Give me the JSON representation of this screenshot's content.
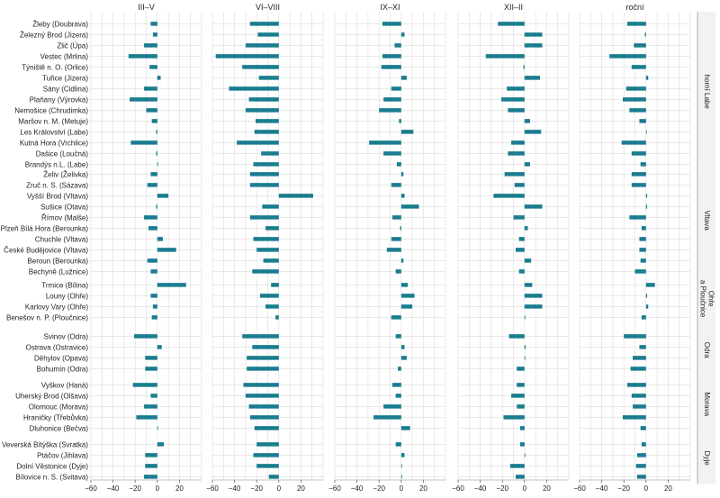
{
  "chart_data": {
    "type": "bar",
    "orientation": "horizontal",
    "panels": [
      "III–V",
      "VI–VIII",
      "IX–XI",
      "XII–II",
      "roční"
    ],
    "xlim": [
      -60,
      40
    ],
    "xticks": [
      -60,
      -40,
      -20,
      0,
      20
    ],
    "grid": true,
    "bar_color": "#1a7d8f",
    "groups": [
      {
        "name": "horní Labe",
        "name_lines": [
          "horní Labe"
        ],
        "stations": [
          {
            "label": "Žleby (Doubrava)",
            "values": [
              -6,
              -26,
              -17,
              -24,
              -17
            ]
          },
          {
            "label": "Železný Brod (Jizera)",
            "values": [
              -4,
              -19,
              3,
              16,
              -1
            ]
          },
          {
            "label": "Zlič (Úpa)",
            "values": [
              -12,
              -30,
              -6,
              16,
              -11
            ]
          },
          {
            "label": "Vestec (Mrlina)",
            "values": [
              -26,
              -57,
              -17,
              -35,
              -33
            ]
          },
          {
            "label": "Týniště n. O. (Orlice)",
            "values": [
              -7,
              -33,
              -18,
              -1,
              -13
            ]
          },
          {
            "label": "Tuřice (Jizera)",
            "values": [
              3,
              -18,
              5,
              14,
              2
            ]
          },
          {
            "label": "Sány (Cidlina)",
            "values": [
              -12,
              -45,
              -9,
              -16,
              -18
            ]
          },
          {
            "label": "Plaňany (Výrovka)",
            "values": [
              -25,
              -27,
              -16,
              -21,
              -21
            ]
          },
          {
            "label": "Nemošice (Chrudimka)",
            "values": [
              -10,
              -30,
              -20,
              -15,
              -15
            ]
          },
          {
            "label": "Maršov n. M. (Metuje)",
            "values": [
              -5,
              -21,
              -2,
              5,
              -6
            ]
          },
          {
            "label": "Les Království (Labe)",
            "values": [
              -1,
              -22,
              11,
              15,
              0
            ]
          },
          {
            "label": "Kutná Hora (Vrchlice)",
            "values": [
              -24,
              -38,
              -29,
              -12,
              -22
            ]
          },
          {
            "label": "Dašice (Loučná)",
            "values": [
              -1,
              -16,
              -16,
              -15,
              -13
            ]
          },
          {
            "label": "Brandýs n.L. (Labe)",
            "values": [
              0,
              -23,
              -4,
              5,
              -5
            ]
          }
        ]
      },
      {
        "name": "Vltava",
        "name_lines": [
          "Vltava"
        ],
        "stations": [
          {
            "label": "Želiv (Želivka)",
            "values": [
              -6,
              -26,
              2,
              -18,
              -13
            ]
          },
          {
            "label": "Zruč n. S. (Sázava)",
            "values": [
              -9,
              -26,
              -9,
              -9,
              -13
            ]
          },
          {
            "label": "Vyšší Brod (Vltava)",
            "values": [
              10,
              31,
              3,
              -28,
              1
            ]
          },
          {
            "label": "Sušice (Otava)",
            "values": [
              -1,
              -15,
              16,
              16,
              1
            ]
          },
          {
            "label": "Římov (Malše)",
            "values": [
              -12,
              -26,
              -8,
              -10,
              -15
            ]
          },
          {
            "label": "Plzeň Bílá Hora (Berounka)",
            "values": [
              -8,
              -12,
              -1,
              3,
              -4
            ]
          },
          {
            "label": "Chuchle (Vltava)",
            "values": [
              5,
              -23,
              -9,
              -5,
              -6
            ]
          },
          {
            "label": "České Budějovice (Vltava)",
            "values": [
              17,
              -20,
              -13,
              -8,
              -6
            ]
          },
          {
            "label": "Beroun (Berounka)",
            "values": [
              -9,
              -14,
              2,
              6,
              -5
            ]
          },
          {
            "label": "Bechyně (Lužnice)",
            "values": [
              -6,
              -24,
              -5,
              -5,
              -10
            ]
          }
        ]
      },
      {
        "name": "Ohře a Ploučnice",
        "name_lines": [
          "Ohře",
          "a Ploučnice"
        ],
        "stations": [
          {
            "label": "Trmice (Bílina)",
            "values": [
              26,
              -7,
              6,
              7,
              8
            ]
          },
          {
            "label": "Louny (Ohře)",
            "values": [
              -6,
              -17,
              12,
              16,
              1
            ]
          },
          {
            "label": "Karlovy Vary (Ohře)",
            "values": [
              -4,
              -12,
              10,
              16,
              2
            ]
          },
          {
            "label": "Benešov n. P. (Ploučnice)",
            "values": [
              -5,
              -3,
              -9,
              0,
              -4
            ]
          }
        ]
      },
      {
        "name": "Odra",
        "name_lines": [
          "Odra"
        ],
        "stations": [
          {
            "label": "Svinov (Odra)",
            "values": [
              -21,
              -33,
              -5,
              -14,
              -20
            ]
          },
          {
            "label": "Ostrava (Ostravice)",
            "values": [
              4,
              -24,
              3,
              1,
              -6
            ]
          },
          {
            "label": "Děhylov (Opava)",
            "values": [
              -11,
              -29,
              5,
              0,
              -12
            ]
          },
          {
            "label": "Bohumín (Odra)",
            "values": [
              -11,
              -29,
              -3,
              -7,
              -14
            ]
          }
        ]
      },
      {
        "name": "Morava",
        "name_lines": [
          "Morava"
        ],
        "stations": [
          {
            "label": "Vyškov (Haná)",
            "values": [
              -22,
              -32,
              -8,
              -7,
              -17
            ]
          },
          {
            "label": "Uherský Brod (Olšava)",
            "values": [
              -6,
              -30,
              -5,
              -12,
              -13
            ]
          },
          {
            "label": "Olomouc (Morava)",
            "values": [
              -12,
              -27,
              -16,
              -7,
              -12
            ]
          },
          {
            "label": "Hraničky (Třebůvka)",
            "values": [
              -19,
              -26,
              -25,
              -19,
              -21
            ]
          },
          {
            "label": "Dluhonice (Bečva)",
            "values": [
              0,
              -22,
              8,
              -4,
              -5
            ]
          }
        ]
      },
      {
        "name": "Dyje",
        "name_lines": [
          "Dyje"
        ],
        "stations": [
          {
            "label": "Veverská Bítýška (Svratka)",
            "values": [
              6,
              -20,
              -5,
              -4,
              -4
            ]
          },
          {
            "label": "Ptáčov (Jihlava)",
            "values": [
              -11,
              -23,
              3,
              0,
              -8
            ]
          },
          {
            "label": "Dolní Věstonice (Dyje)",
            "values": [
              -11,
              -20,
              0,
              -13,
              -9
            ]
          },
          {
            "label": "Bílovice n. S. (Svitava)",
            "values": [
              -12,
              -9,
              0,
              -8,
              -8
            ]
          }
        ]
      }
    ]
  }
}
